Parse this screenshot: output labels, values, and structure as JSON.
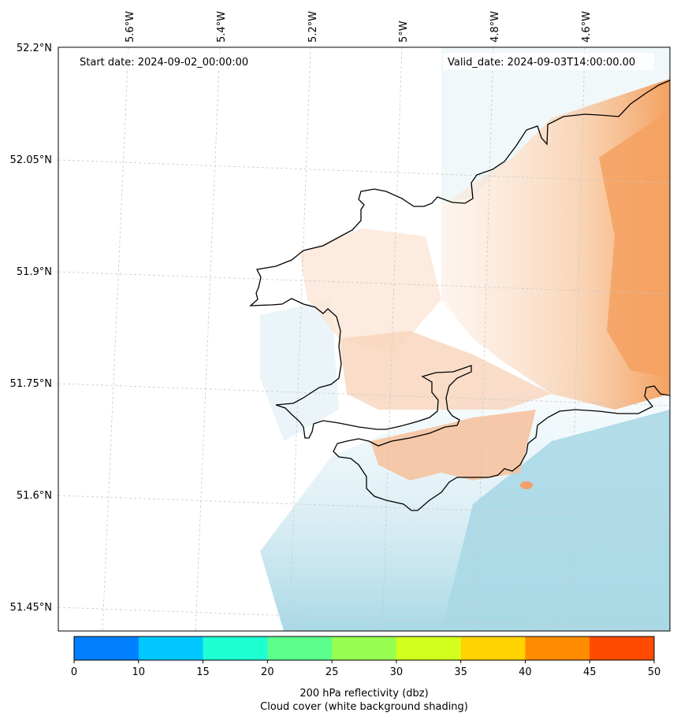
{
  "map": {
    "start_date_label": "Start date: 2024-09-02_00:00:00",
    "valid_date_label": "Valid_date: 2024-09-03T14:00:00.00",
    "lon_ticks": [
      "5.6°W",
      "5.4°W",
      "5.2°W",
      "5°W",
      "4.8°W",
      "4.6°W"
    ],
    "lat_ticks": [
      "52.2°N",
      "52.05°N",
      "51.9°N",
      "51.75°N",
      "51.6°N",
      "51.45°N"
    ],
    "colors": {
      "land_outline": "#000000",
      "cloud_blue": "#a9d8e6",
      "reflectivity_orange": "#f4a160",
      "gridline": "#c8c8c8"
    }
  },
  "colorbar": {
    "ticks": [
      "0",
      "10",
      "15",
      "20",
      "25",
      "30",
      "35",
      "40",
      "45",
      "50"
    ],
    "colors": [
      "#0080ff",
      "#00c8ff",
      "#1effd2",
      "#5cff8c",
      "#96ff50",
      "#d2ff1e",
      "#ffd200",
      "#ff8c00",
      "#ff4b00"
    ],
    "label_line1": "200 hPa reflectivity (dbz)",
    "label_line2": "Cloud cover (white background shading)"
  }
}
